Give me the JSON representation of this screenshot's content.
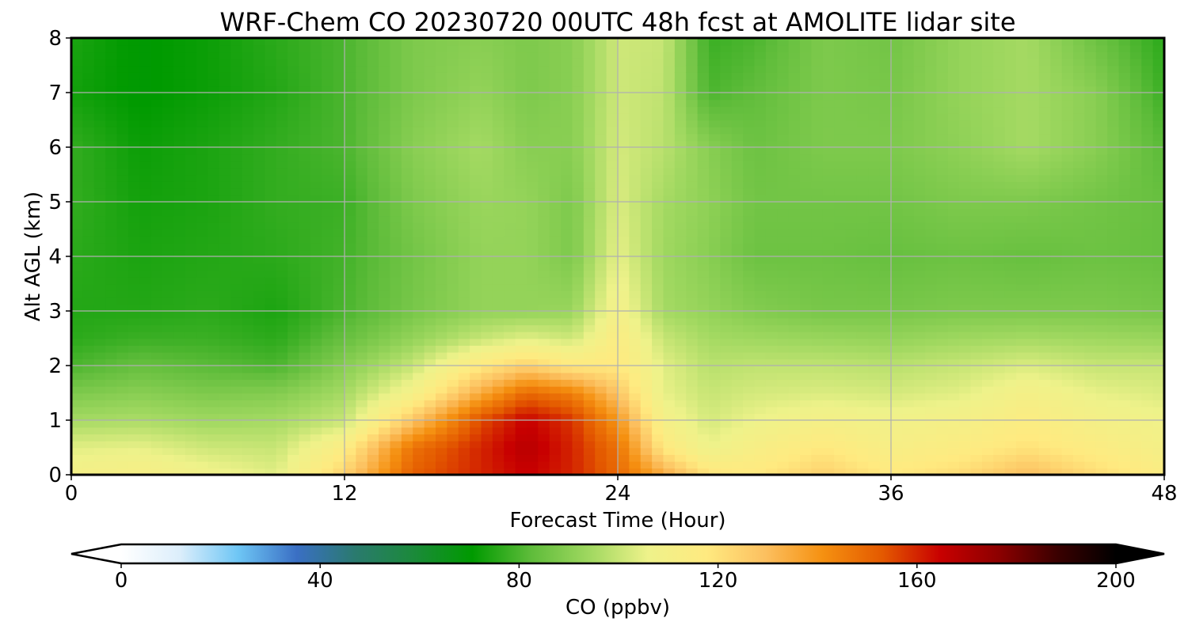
{
  "chart_data": {
    "type": "heatmap",
    "title": "WRF-Chem CO  20230720 00UTC 48h fcst at AMOLITE lidar site",
    "xlabel": "Forecast Time (Hour)",
    "ylabel": "Alt AGL (km)",
    "xlim": [
      0,
      48
    ],
    "ylim": [
      0,
      8
    ],
    "xticks": [
      0,
      12,
      24,
      36,
      48
    ],
    "yticks": [
      0,
      1,
      2,
      3,
      4,
      5,
      6,
      7,
      8
    ],
    "grid": true,
    "x": [
      0,
      3,
      6,
      9,
      12,
      15,
      18,
      20,
      22,
      24,
      26,
      28,
      30,
      33,
      36,
      39,
      42,
      45,
      48
    ],
    "y": [
      0,
      0.5,
      1,
      1.5,
      2,
      2.5,
      3,
      4,
      5,
      6,
      7,
      8
    ],
    "z": [
      [
        110,
        112,
        108,
        104,
        125,
        152,
        160,
        165,
        160,
        150,
        135,
        120,
        118,
        125,
        118,
        122,
        130,
        122,
        115
      ],
      [
        104,
        105,
        101,
        100,
        115,
        148,
        160,
        168,
        160,
        148,
        118,
        106,
        112,
        118,
        112,
        115,
        120,
        115,
        110
      ],
      [
        95,
        96,
        94,
        95,
        100,
        128,
        155,
        165,
        158,
        140,
        110,
        102,
        106,
        110,
        108,
        110,
        115,
        110,
        107
      ],
      [
        88,
        90,
        88,
        89,
        95,
        110,
        135,
        150,
        145,
        128,
        105,
        100,
        102,
        103,
        102,
        104,
        110,
        105,
        103
      ],
      [
        80,
        84,
        82,
        80,
        90,
        100,
        118,
        125,
        118,
        118,
        104,
        98,
        99,
        99,
        98,
        100,
        103,
        100,
        100
      ],
      [
        76,
        78,
        78,
        76,
        84,
        92,
        100,
        104,
        101,
        115,
        100,
        95,
        94,
        93,
        92,
        94,
        95,
        94,
        93
      ],
      [
        75,
        75,
        76,
        74,
        80,
        87,
        92,
        92,
        93,
        110,
        95,
        92,
        89,
        87,
        87,
        88,
        88,
        88,
        87
      ],
      [
        76,
        74,
        75,
        76,
        79,
        86,
        92,
        92,
        88,
        105,
        94,
        90,
        85,
        85,
        84,
        85,
        84,
        85,
        84
      ],
      [
        77,
        73,
        74,
        77,
        78,
        88,
        93,
        92,
        88,
        103,
        95,
        91,
        86,
        86,
        86,
        88,
        88,
        86,
        84
      ],
      [
        77,
        72,
        74,
        77,
        80,
        90,
        95,
        90,
        90,
        102,
        98,
        90,
        85,
        88,
        88,
        91,
        95,
        90,
        82
      ],
      [
        73,
        70,
        72,
        75,
        80,
        88,
        92,
        88,
        90,
        101,
        99,
        80,
        83,
        88,
        87,
        92,
        95,
        90,
        78
      ],
      [
        74,
        70,
        72,
        76,
        80,
        88,
        90,
        88,
        90,
        101,
        100,
        78,
        80,
        88,
        86,
        92,
        95,
        85,
        76
      ]
    ],
    "colorbar": {
      "label": "CO  (ppbv)",
      "min": 0,
      "max": 200,
      "ticks": [
        0,
        40,
        80,
        120,
        160,
        200
      ],
      "extend": "both",
      "colors": [
        "#ffffff",
        "#dceefb",
        "#6ec6f5",
        "#3a6fc4",
        "#2a7a6e",
        "#1b8a3a",
        "#009a00",
        "#5ebc3a",
        "#a0d860",
        "#eef28a",
        "#ffea80",
        "#fcc060",
        "#f59010",
        "#e45a00",
        "#c80000",
        "#8c0000",
        "#3a0000",
        "#000000"
      ]
    }
  }
}
